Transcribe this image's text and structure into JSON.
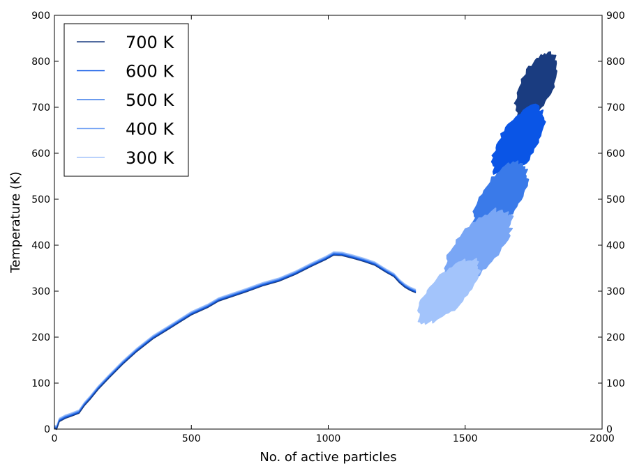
{
  "chart_data": {
    "type": "line",
    "title": "",
    "xlabel": "No. of active particles",
    "ylabel": "Temperature (K)",
    "xlim": [
      0,
      2000
    ],
    "ylim": [
      0,
      900
    ],
    "xticks": [
      0,
      500,
      1000,
      1500,
      2000
    ],
    "yticks": [
      0,
      100,
      200,
      300,
      400,
      500,
      600,
      700,
      800,
      900
    ],
    "right_yticks": [
      0,
      100,
      200,
      300,
      400,
      500,
      600,
      700,
      800,
      900
    ],
    "grid": false,
    "legend_position": "top-left",
    "shared_path": {
      "x": [
        0,
        8,
        18,
        40,
        60,
        90,
        110,
        130,
        160,
        200,
        250,
        300,
        360,
        420,
        500,
        560,
        600,
        650,
        700,
        760,
        820,
        880,
        940,
        990,
        1020,
        1050,
        1090,
        1130,
        1170,
        1210,
        1240,
        1260,
        1280,
        1300,
        1320
      ],
      "y": [
        5,
        3,
        20,
        27,
        31,
        38,
        55,
        68,
        90,
        115,
        145,
        172,
        200,
        222,
        252,
        268,
        282,
        292,
        302,
        315,
        325,
        340,
        358,
        372,
        382,
        381,
        375,
        368,
        360,
        345,
        335,
        322,
        312,
        305,
        300
      ]
    },
    "series": [
      {
        "name": "700 K",
        "color": "#1a3c80",
        "cluster": {
          "x_center": 1760,
          "y_center": 745,
          "x_halfwidth": 75,
          "y_halfwidth": 70,
          "tilt": 0.42
        }
      },
      {
        "name": "600 K",
        "color": "#0a55e6",
        "cluster": {
          "x_center": 1695,
          "y_center": 625,
          "x_halfwidth": 95,
          "y_halfwidth": 70,
          "tilt": 0.42
        }
      },
      {
        "name": "500 K",
        "color": "#3a7ae9",
        "cluster": {
          "x_center": 1630,
          "y_center": 505,
          "x_halfwidth": 100,
          "y_halfwidth": 68,
          "tilt": 0.42
        }
      },
      {
        "name": "400 K",
        "color": "#79a6f5",
        "cluster": {
          "x_center": 1545,
          "y_center": 395,
          "x_halfwidth": 125,
          "y_halfwidth": 70,
          "tilt": 0.42
        }
      },
      {
        "name": "300 K",
        "color": "#a3c4fb",
        "cluster": {
          "x_center": 1440,
          "y_center": 300,
          "x_halfwidth": 115,
          "y_halfwidth": 55,
          "tilt": 0.42
        }
      }
    ]
  }
}
